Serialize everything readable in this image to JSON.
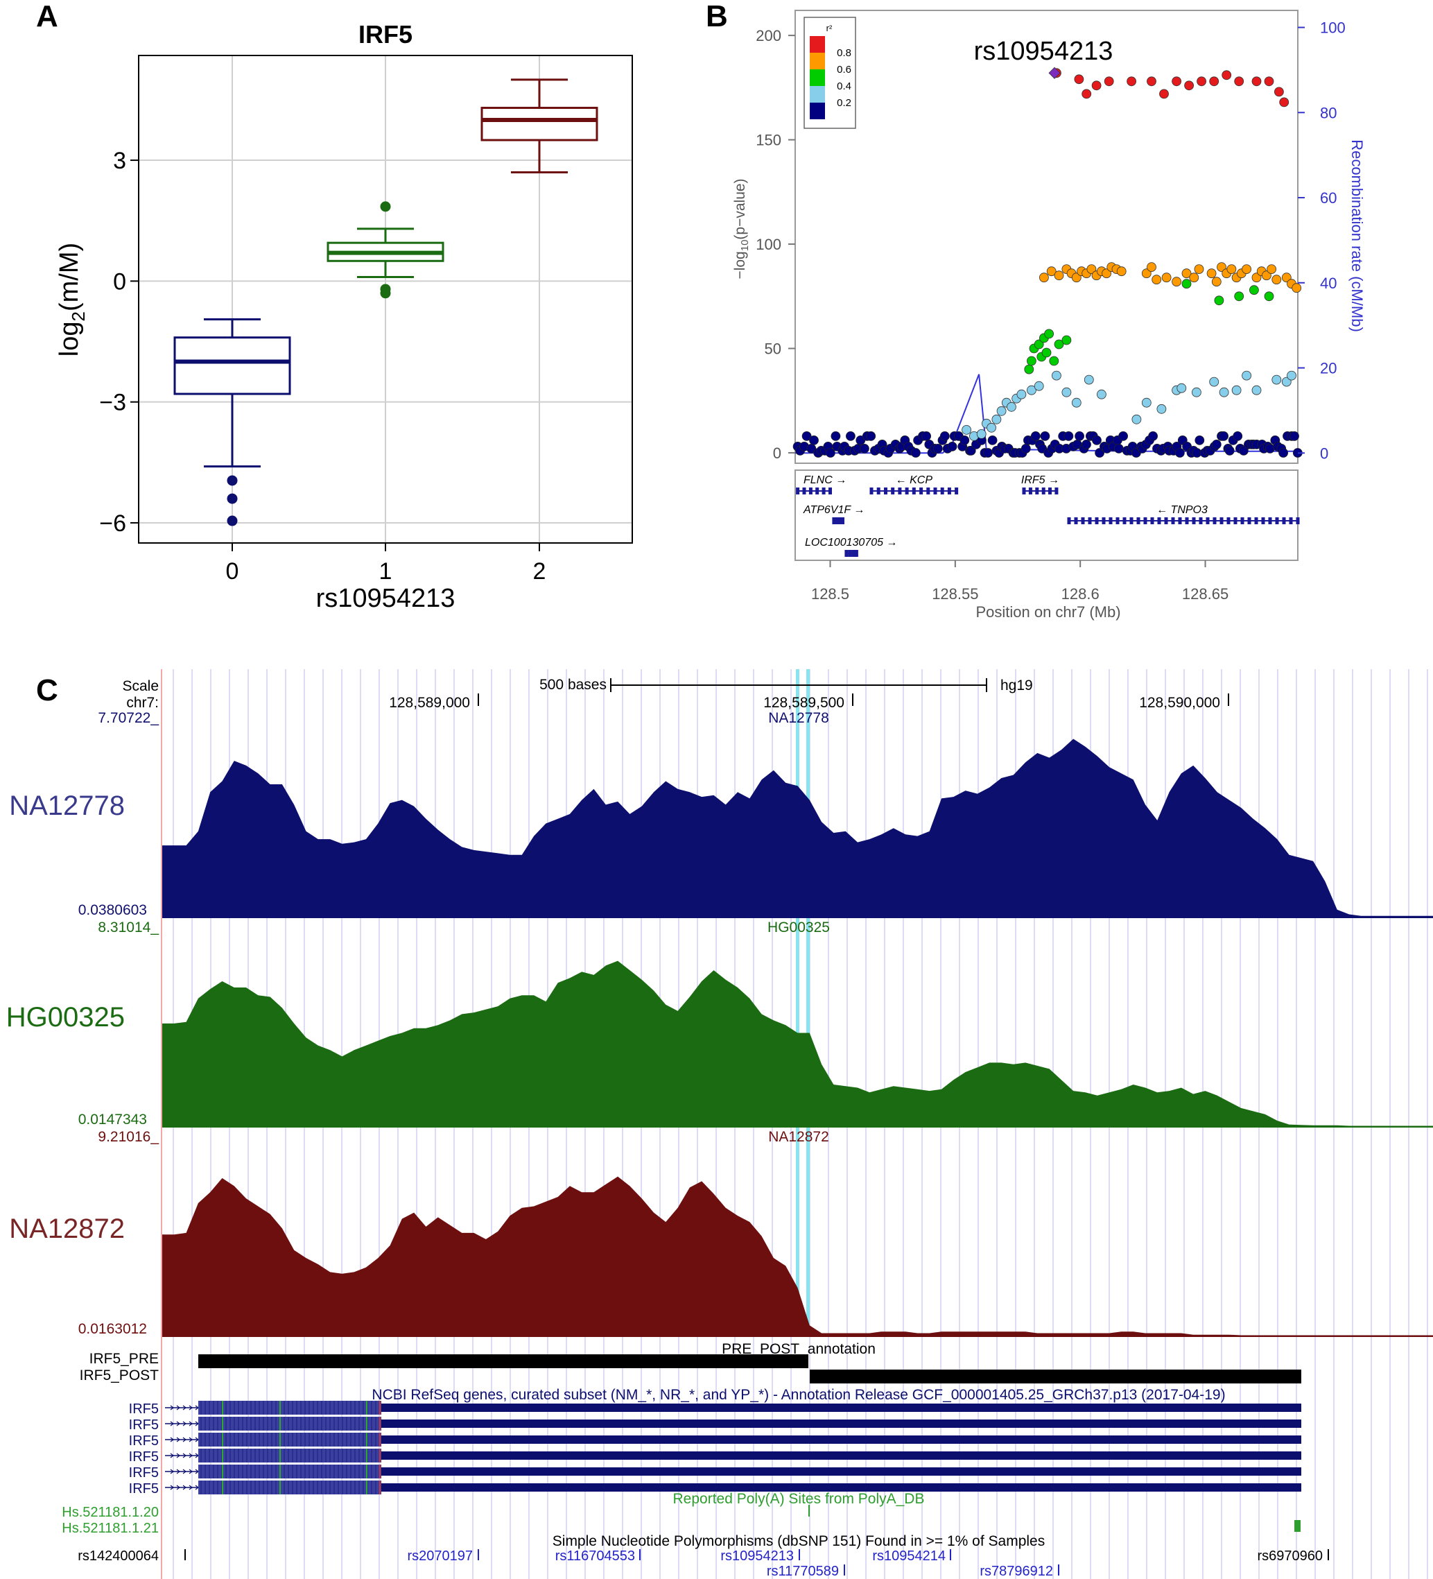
{
  "panelA": {
    "letter": "A",
    "chart_data": {
      "type": "box",
      "title": "IRF5",
      "xlabel": "rs10954213",
      "ylabel": "log2(m/M)",
      "ylabel_parts": {
        "base": "log",
        "sub": "2",
        "rest": "(m/M)"
      },
      "categories": [
        "0",
        "1",
        "2"
      ],
      "ylim": [
        -6.5,
        5.6
      ],
      "yticks": [
        -6,
        -3,
        0,
        3
      ],
      "ytick_labels": [
        "−6",
        "−3",
        "0",
        "3"
      ],
      "boxes": [
        {
          "category": "0",
          "color": "#0c0f6e",
          "whisker_low": -4.6,
          "q1": -2.8,
          "median": -2.0,
          "q3": -1.4,
          "whisker_high": -0.95,
          "outliers": [
            -4.95,
            -5.4,
            -5.95
          ]
        },
        {
          "category": "1",
          "color": "#1b6b12",
          "whisker_low": 0.1,
          "q1": 0.5,
          "median": 0.7,
          "q3": 0.95,
          "whisker_high": 1.3,
          "outliers": [
            1.85,
            -0.2,
            -0.3
          ]
        },
        {
          "category": "2",
          "color": "#6e0f0f",
          "whisker_low": 2.7,
          "q1": 3.5,
          "median": 4.0,
          "q3": 4.3,
          "whisker_high": 5.0,
          "outliers": []
        }
      ]
    }
  },
  "panelB": {
    "letter": "B",
    "snp_label": "rs10954213",
    "chart_data": {
      "type": "scatter",
      "xlabel": "Position on chr7 (Mb)",
      "ylabel": "−log10(p-value)",
      "ylabel_parts": {
        "pre": "−log",
        "sub": "10",
        "rest": "(p−value)"
      },
      "y2label": "Recombination rate (cM/Mb)",
      "xlim": [
        128.486,
        128.687
      ],
      "ylim": [
        -5,
        212
      ],
      "y2lim": [
        -2.4,
        104
      ],
      "xticks": [
        128.5,
        128.55,
        128.6,
        128.65
      ],
      "xtick_labels": [
        "128.5",
        "128.55",
        "128.6",
        "128.65"
      ],
      "yticks": [
        0,
        50,
        100,
        150,
        200
      ],
      "y2ticks": [
        0,
        20,
        40,
        60,
        80,
        100
      ],
      "legend": {
        "title": "r²",
        "bins": [
          "0.8",
          "0.6",
          "0.4",
          "0.2"
        ],
        "colors": [
          "#e41a1c",
          "#ff9900",
          "#00cc00",
          "#87ceeb",
          "#000080"
        ]
      },
      "lead_snp": {
        "x": 128.5897,
        "y": 182
      },
      "series": [
        {
          "name": "r2 0.8-1.0",
          "color": "#e41a1c",
          "x": [
            128.5905,
            128.5995,
            128.6025,
            128.6065,
            128.6115,
            128.6205,
            128.6285,
            128.6335,
            128.6385,
            128.6435,
            128.6485,
            128.6535,
            128.6585,
            128.6635,
            128.6705,
            128.6755,
            128.6795,
            128.6815
          ],
          "y": [
            182,
            179,
            172,
            176,
            178,
            178,
            178,
            172,
            178,
            176,
            178,
            178,
            181,
            178,
            178,
            178,
            173,
            168
          ]
        },
        {
          "name": "r2 0.6-0.8",
          "color": "#ff9900",
          "x": [
            128.5855,
            128.5885,
            128.5915,
            128.5945,
            128.5965,
            128.5985,
            128.6005,
            128.6025,
            128.6045,
            128.6065,
            128.6085,
            128.6105,
            128.6125,
            128.6145,
            128.6165,
            128.6265,
            128.6285,
            128.6305,
            128.6345,
            128.6385,
            128.6425,
            128.6455,
            128.6475,
            128.6525,
            128.6545,
            128.6565,
            128.6585,
            128.6605,
            128.6625,
            128.6645,
            128.6665,
            128.6705,
            128.6725,
            128.6745,
            128.6765,
            128.6785,
            128.6825,
            128.6845,
            128.6865
          ],
          "y": [
            84,
            87,
            85,
            88,
            86,
            84,
            87,
            86,
            88,
            85,
            87,
            86,
            89,
            88,
            87,
            86,
            89,
            83,
            84,
            82,
            86,
            84,
            88,
            86,
            82,
            89,
            86,
            88,
            84,
            86,
            88,
            84,
            87,
            85,
            88,
            83,
            84,
            81,
            79
          ]
        },
        {
          "name": "r2 0.4-0.6",
          "color": "#00cc00",
          "x": [
            128.5795,
            128.5805,
            128.5815,
            128.5835,
            128.5845,
            128.5855,
            128.5865,
            128.5875,
            128.5895,
            128.5915,
            128.5945,
            128.6425,
            128.6555,
            128.6635,
            128.6695,
            128.6755
          ],
          "y": [
            40,
            44,
            50,
            52,
            46,
            55,
            48,
            57,
            44,
            52,
            54,
            81,
            73,
            75,
            78,
            75
          ]
        },
        {
          "name": "r2 0.2-0.4",
          "color": "#87ceeb",
          "x": [
            128.5545,
            128.5575,
            128.5605,
            128.5625,
            128.5645,
            128.5665,
            128.5685,
            128.5705,
            128.5725,
            128.5745,
            128.5765,
            128.5805,
            128.5835,
            128.5905,
            128.5945,
            128.5985,
            128.6035,
            128.6085,
            128.6225,
            128.6265,
            128.6325,
            128.6385,
            128.6405,
            128.6465,
            128.6535,
            128.6575,
            128.6625,
            128.6665,
            128.6705,
            128.6785,
            128.6825,
            128.6845
          ],
          "y": [
            11,
            8,
            9,
            14,
            12,
            16,
            20,
            24,
            22,
            26,
            28,
            30,
            32,
            37,
            29,
            24,
            35,
            28,
            16,
            24,
            21,
            30,
            31,
            29,
            34,
            29,
            30,
            37,
            30,
            35,
            34,
            37
          ]
        }
      ],
      "dense_band": {
        "name": "r2 0-0.2",
        "color": "#000080",
        "x_from": 128.487,
        "x_to": 128.687,
        "y_values": [
          0,
          1,
          2,
          3,
          4,
          6,
          8
        ]
      },
      "recombination_rate": {
        "x": [
          128.486,
          128.545,
          128.549,
          128.5595,
          128.5625,
          128.58,
          128.62,
          128.687
        ],
        "y": [
          0,
          0,
          2.5,
          18.5,
          0.6,
          0.8,
          0.4,
          0.4
        ]
      },
      "genes": [
        {
          "name": "FLNC",
          "strand": "+",
          "start": 128.487,
          "end": 128.5,
          "row": 0
        },
        {
          "name": "KCP",
          "strand": "-",
          "start": 128.5165,
          "end": 128.5505,
          "row": 0
        },
        {
          "name": "IRF5",
          "strand": "+",
          "start": 128.5775,
          "end": 128.5905,
          "row": 0
        },
        {
          "name": "ATP6V1F",
          "strand": "+",
          "start": 128.5015,
          "end": 128.505,
          "row": 1
        },
        {
          "name": "TNPO3",
          "strand": "-",
          "start": 128.5955,
          "end": 128.687,
          "row": 1
        },
        {
          "name": "LOC100130705",
          "strand": "+",
          "start": 128.5065,
          "end": 128.5105,
          "row": 2
        }
      ]
    }
  },
  "panelC": {
    "letter": "C",
    "header": {
      "scale_label": "Scale",
      "chrom_label": "chr7:",
      "scalebar_label": "500 bases",
      "assembly": "hg19",
      "positions": [
        "128,589,000",
        "128,589,500",
        "128,590,000"
      ]
    },
    "tracks": [
      {
        "sample": "NA12778",
        "max": "7.70722_",
        "min": "0.0380603",
        "color": "#0c0f6e",
        "label_color": "#3a3a8c",
        "maxcolor": "#10106e",
        "profile": [
          0.46,
          0.46,
          0.46,
          0.55,
          0.8,
          0.87,
          1.0,
          0.97,
          0.92,
          0.85,
          0.85,
          0.72,
          0.55,
          0.5,
          0.5,
          0.47,
          0.48,
          0.5,
          0.6,
          0.73,
          0.75,
          0.71,
          0.63,
          0.56,
          0.5,
          0.45,
          0.43,
          0.42,
          0.41,
          0.4,
          0.4,
          0.52,
          0.6,
          0.63,
          0.66,
          0.75,
          0.82,
          0.72,
          0.74,
          0.66,
          0.71,
          0.8,
          0.87,
          0.82,
          0.8,
          0.77,
          0.78,
          0.72,
          0.8,
          0.76,
          0.88,
          0.94,
          0.86,
          0.84,
          0.75,
          0.61,
          0.54,
          0.55,
          0.48,
          0.5,
          0.53,
          0.57,
          0.53,
          0.52,
          0.55,
          0.76,
          0.77,
          0.81,
          0.79,
          0.83,
          0.89,
          0.91,
          0.99,
          1.05,
          1.02,
          1.07,
          1.14,
          1.09,
          1.03,
          0.96,
          0.92,
          0.88,
          0.72,
          0.62,
          0.8,
          0.92,
          0.97,
          0.89,
          0.8,
          0.75,
          0.7,
          0.63,
          0.57,
          0.5,
          0.4,
          0.38,
          0.36,
          0.23,
          0.05,
          0.02,
          0.01,
          0.01,
          0.01,
          0.01,
          0.01,
          0.01,
          0.01
        ]
      },
      {
        "sample": "HG00325",
        "max": "8.31014_",
        "min": "0.0147343",
        "color": "#1b6b12",
        "label_color": "#1b6b12",
        "maxcolor": "#1b6b12",
        "profile": [
          0.66,
          0.66,
          0.67,
          0.82,
          0.88,
          0.93,
          0.89,
          0.89,
          0.84,
          0.83,
          0.76,
          0.66,
          0.57,
          0.52,
          0.49,
          0.45,
          0.49,
          0.52,
          0.55,
          0.58,
          0.6,
          0.63,
          0.63,
          0.65,
          0.68,
          0.72,
          0.73,
          0.75,
          0.77,
          0.82,
          0.84,
          0.84,
          0.8,
          0.92,
          0.95,
          0.99,
          0.97,
          1.03,
          1.06,
          1.0,
          0.94,
          0.87,
          0.78,
          0.74,
          0.83,
          0.93,
          1.0,
          0.94,
          0.89,
          0.82,
          0.72,
          0.68,
          0.65,
          0.6,
          0.6,
          0.4,
          0.27,
          0.26,
          0.25,
          0.22,
          0.24,
          0.26,
          0.25,
          0.24,
          0.23,
          0.24,
          0.3,
          0.35,
          0.38,
          0.41,
          0.41,
          0.4,
          0.41,
          0.39,
          0.37,
          0.3,
          0.23,
          0.22,
          0.2,
          0.22,
          0.24,
          0.27,
          0.25,
          0.22,
          0.23,
          0.25,
          0.21,
          0.23,
          0.2,
          0.16,
          0.12,
          0.1,
          0.08,
          0.04,
          0.015,
          0.012,
          0.01,
          0.01,
          0.01,
          0.005,
          0.005,
          0.005,
          0.005,
          0.005,
          0.005,
          0.005,
          0.005
        ]
      },
      {
        "sample": "NA12872",
        "max": "9.21016_",
        "min": "0.0163012",
        "color": "#6e0f0f",
        "label_color": "#7a2525",
        "maxcolor": "#6e0f0f",
        "profile": [
          0.65,
          0.65,
          0.66,
          0.85,
          0.92,
          1.01,
          0.96,
          0.88,
          0.83,
          0.78,
          0.69,
          0.55,
          0.5,
          0.46,
          0.41,
          0.4,
          0.41,
          0.44,
          0.5,
          0.58,
          0.75,
          0.79,
          0.7,
          0.76,
          0.71,
          0.66,
          0.66,
          0.62,
          0.67,
          0.77,
          0.82,
          0.83,
          0.86,
          0.89,
          0.96,
          0.92,
          0.92,
          0.97,
          1.02,
          0.96,
          0.88,
          0.79,
          0.73,
          0.82,
          0.95,
          0.99,
          0.91,
          0.82,
          0.77,
          0.73,
          0.64,
          0.5,
          0.45,
          0.31,
          0.07,
          0.02,
          0.02,
          0.02,
          0.02,
          0.02,
          0.03,
          0.03,
          0.03,
          0.02,
          0.02,
          0.03,
          0.03,
          0.03,
          0.03,
          0.03,
          0.03,
          0.03,
          0.03,
          0.02,
          0.02,
          0.02,
          0.02,
          0.02,
          0.02,
          0.02,
          0.03,
          0.03,
          0.02,
          0.02,
          0.02,
          0.02,
          0.01,
          0.01,
          0.01,
          0.01,
          0.005,
          0.005,
          0.005,
          0.005,
          0.005,
          0.005,
          0.005,
          0.005,
          0.005,
          0.005,
          0.005,
          0.005,
          0.005,
          0.005,
          0.005,
          0.005,
          0.005
        ]
      }
    ],
    "annotation": {
      "title": "PRE_POST_annotation",
      "pre_label": "IRF5_PRE",
      "post_label": "IRF5_POST"
    },
    "refseq": {
      "title": "NCBI RefSeq genes, curated subset (NM_*, NR_*, and YP_*) - Annotation Release GCF_000001405.25_GRCh37.p13 (2017-04-19)",
      "gene_labels": [
        "IRF5",
        "IRF5",
        "IRF5",
        "IRF5",
        "IRF5",
        "IRF5"
      ]
    },
    "polya": {
      "title": "Reported Poly(A) Sites from PolyA_DB",
      "labels": [
        "Hs.521181.1.20",
        "Hs.521181.1.21"
      ]
    },
    "snp": {
      "title": "Simple Nucleotide Polymorphisms (dbSNP 151) Found in >= 1% of Samples",
      "left_id": "rs142400064",
      "right_id": "rs6970960",
      "row1": [
        "rs2070197",
        "rs116704553",
        "rs10954213",
        "rs10954214"
      ],
      "row2": [
        "rs11770589",
        "rs78796912"
      ]
    }
  }
}
